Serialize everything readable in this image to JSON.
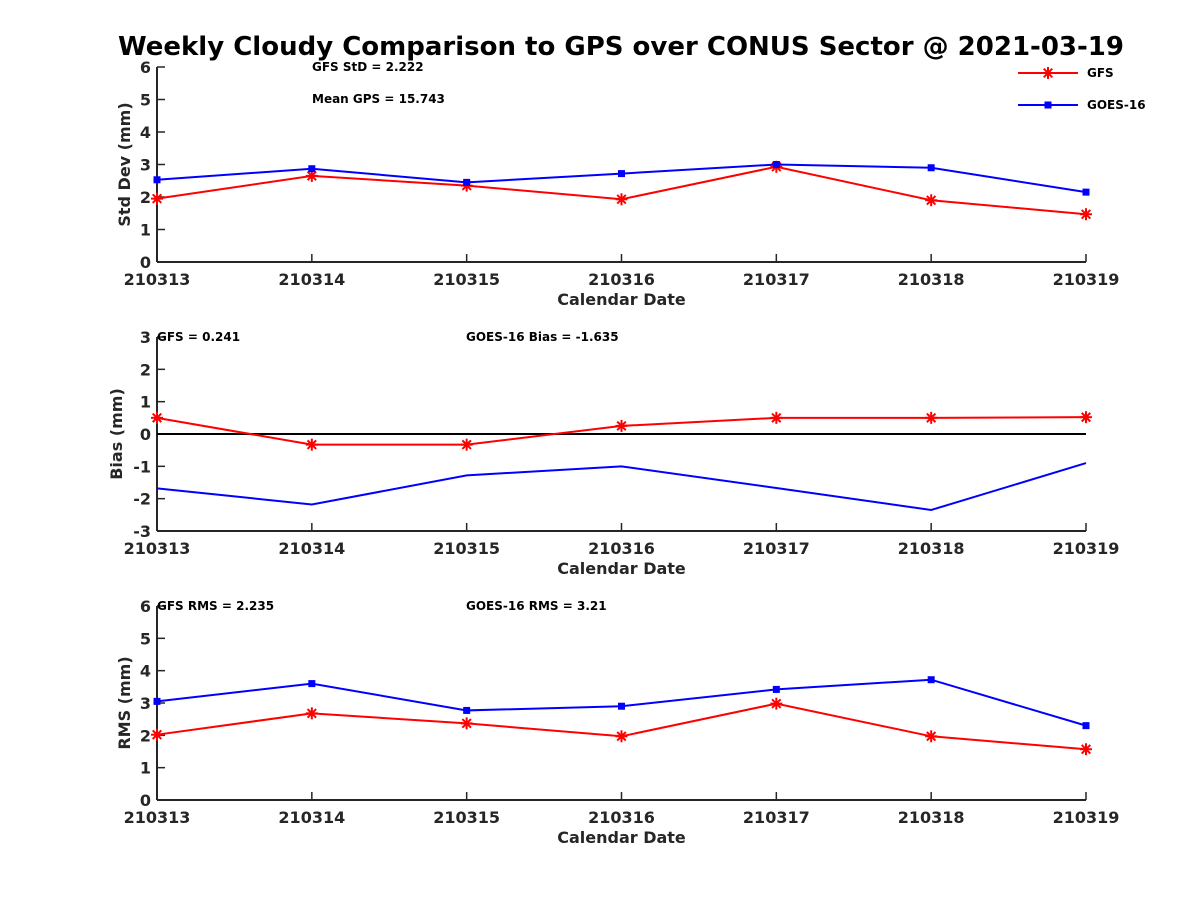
{
  "chart_data": [
    {
      "type": "line",
      "title": "Weekly Cloudy Comparison to GPS over CONUS Sector @ 2021-03-19",
      "xlabel": "Calendar Date",
      "ylabel": "Std Dev (mm)",
      "categories": [
        "210313",
        "210314",
        "210315",
        "210316",
        "210317",
        "210318",
        "210319"
      ],
      "ylim": [
        0,
        6
      ],
      "yticks": [
        "0",
        "1",
        "2",
        "3",
        "4",
        "5",
        "6"
      ],
      "grid": false,
      "legend_position": "top-right",
      "series": [
        {
          "name": "GFS",
          "color": "#ff0000",
          "marker": "asterisk",
          "values": [
            1.95,
            2.65,
            2.35,
            1.93,
            2.93,
            1.9,
            1.47
          ]
        },
        {
          "name": "GOES-16",
          "color": "#0000ff",
          "marker": "square",
          "values": [
            2.53,
            2.87,
            2.45,
            2.72,
            3.0,
            2.9,
            2.15
          ]
        }
      ],
      "annotations": [
        "GFS StD = 2.222",
        "Mean GPS = 15.743"
      ]
    },
    {
      "type": "line",
      "xlabel": "Calendar Date",
      "ylabel": "Bias (mm)",
      "categories": [
        "210313",
        "210314",
        "210315",
        "210316",
        "210317",
        "210318",
        "210319"
      ],
      "ylim": [
        -3,
        3
      ],
      "yticks": [
        "-3",
        "-2",
        "-1",
        "0",
        "1",
        "2",
        "3"
      ],
      "grid": false,
      "zero_line": true,
      "series": [
        {
          "name": "GFS",
          "color": "#ff0000",
          "marker": "asterisk",
          "values": [
            0.5,
            -0.33,
            -0.33,
            0.25,
            0.5,
            0.5,
            0.52
          ]
        },
        {
          "name": "GOES-16",
          "color": "#0000ff",
          "marker": "none",
          "values": [
            -1.68,
            -2.18,
            -1.28,
            -1.0,
            -1.67,
            -2.35,
            -0.9
          ]
        }
      ],
      "annotations": [
        "GFS = 0.241",
        "GOES-16 Bias  = -1.635"
      ]
    },
    {
      "type": "line",
      "xlabel": "Calendar Date",
      "ylabel": "RMS (mm)",
      "categories": [
        "210313",
        "210314",
        "210315",
        "210316",
        "210317",
        "210318",
        "210319"
      ],
      "ylim": [
        0,
        6
      ],
      "yticks": [
        "0",
        "1",
        "2",
        "3",
        "4",
        "5",
        "6"
      ],
      "grid": false,
      "series": [
        {
          "name": "GFS",
          "color": "#ff0000",
          "marker": "asterisk",
          "values": [
            2.02,
            2.68,
            2.37,
            1.97,
            2.98,
            1.97,
            1.57
          ]
        },
        {
          "name": "GOES-16",
          "color": "#0000ff",
          "marker": "square",
          "values": [
            3.05,
            3.6,
            2.77,
            2.9,
            3.42,
            3.72,
            2.3
          ]
        }
      ],
      "annotations": [
        "GFS RMS = 2.235",
        "GOES-16 RMS = 3.21"
      ]
    }
  ]
}
